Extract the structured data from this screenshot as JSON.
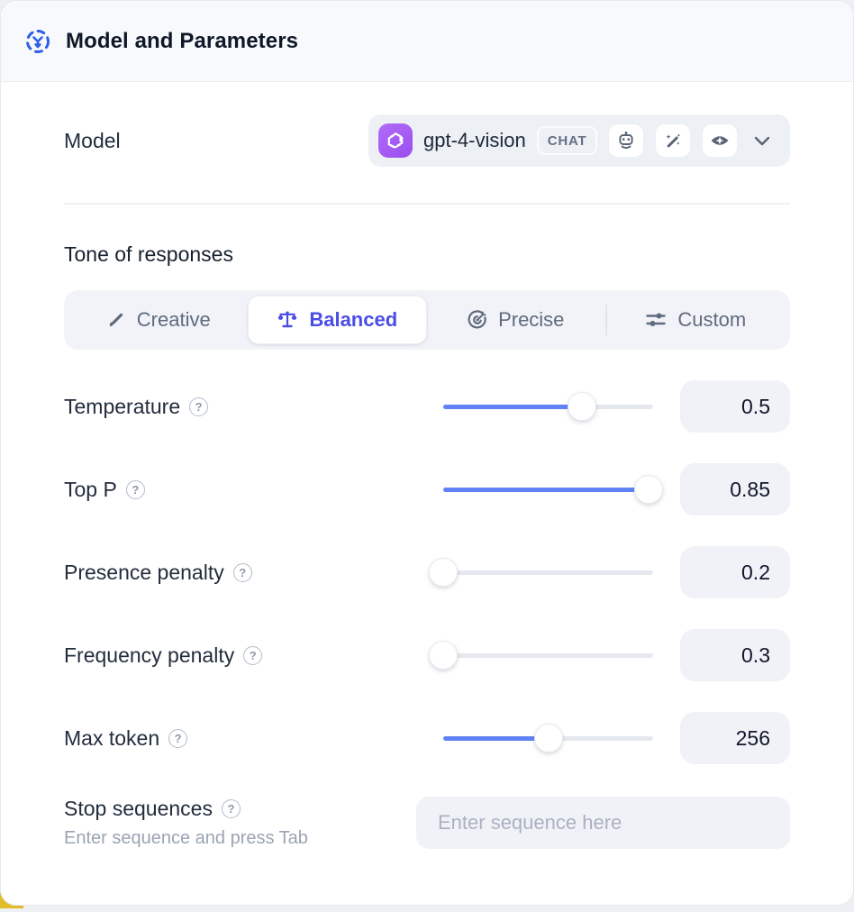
{
  "header": {
    "title": "Model and Parameters"
  },
  "model": {
    "label": "Model",
    "selected_model": "gpt-4-vision",
    "badge": "CHAT",
    "capability_icons": [
      "robot-icon",
      "magic-wand-icon",
      "vision-eye-icon"
    ],
    "brand_color": "#a25df2"
  },
  "tone": {
    "heading": "Tone of responses",
    "tabs": [
      {
        "label": "Creative",
        "icon": "paintbrush-icon",
        "active": false
      },
      {
        "label": "Balanced",
        "icon": "balance-scale-icon",
        "active": true
      },
      {
        "label": "Precise",
        "icon": "target-icon",
        "active": false
      },
      {
        "label": "Custom",
        "icon": "sliders-icon",
        "active": false
      }
    ],
    "active_color": "#4a4de6"
  },
  "parameters": [
    {
      "label": "Temperature",
      "value": "0.5",
      "fill_percent": 66
    },
    {
      "label": "Top P",
      "value": "0.85",
      "fill_percent": 98
    },
    {
      "label": "Presence penalty",
      "value": "0.2",
      "fill_percent": 0
    },
    {
      "label": "Frequency penalty",
      "value": "0.3",
      "fill_percent": 0
    },
    {
      "label": "Max token",
      "value": "256",
      "fill_percent": 50
    }
  ],
  "stop_sequences": {
    "label": "Stop sequences",
    "hint": "Enter sequence and press Tab",
    "placeholder": "Enter sequence here"
  },
  "help_glyph": "?",
  "colors": {
    "slider_blue": "#6182f6",
    "header_icon_blue": "#2f5fe8"
  }
}
